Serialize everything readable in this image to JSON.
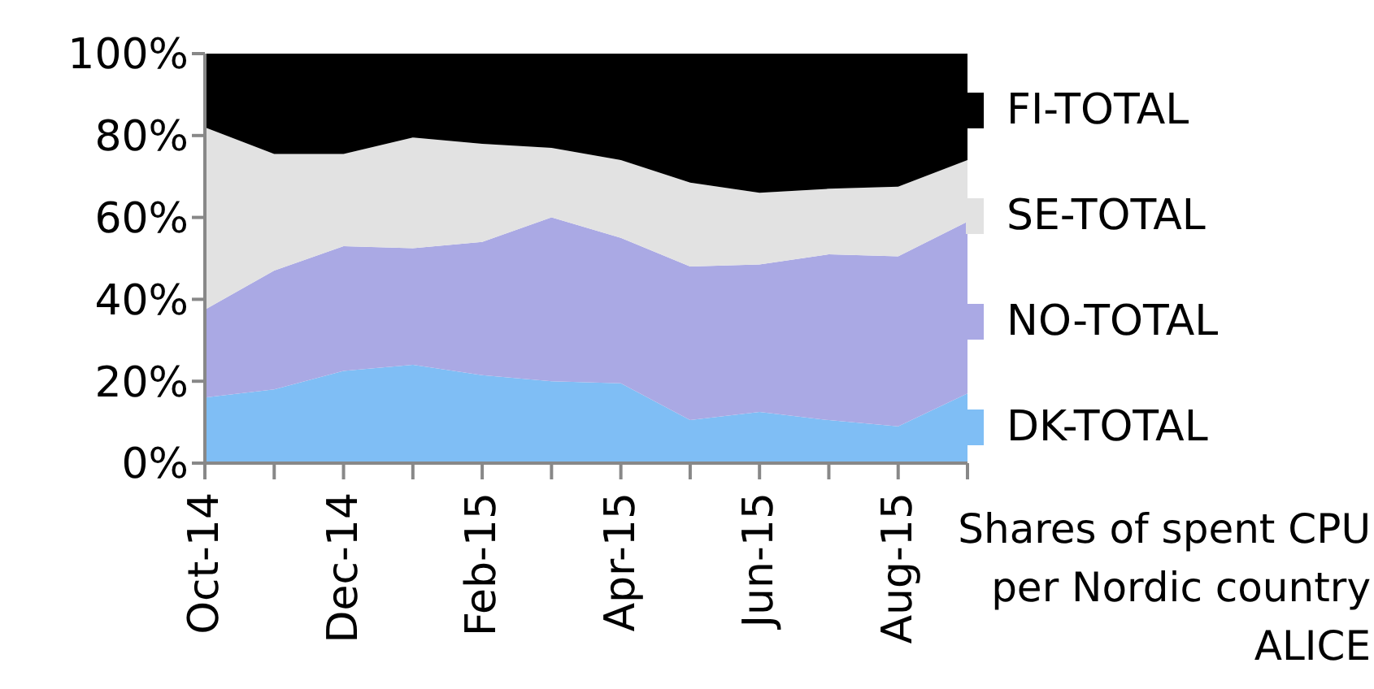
{
  "chart_data": {
    "type": "area",
    "stacked": true,
    "categories": [
      "Oct-14",
      null,
      "Dec-14",
      null,
      "Feb-15",
      null,
      "Apr-15",
      null,
      "Jun-15",
      null,
      "Aug-15",
      null
    ],
    "series": [
      {
        "name": "DK-TOTAL",
        "color": "#7fbef5",
        "values": [
          16,
          18,
          22.5,
          24,
          21.5,
          20,
          19.5,
          10.5,
          12.5,
          10.5,
          9,
          17
        ]
      },
      {
        "name": "NO-TOTAL",
        "color": "#aaa9e4",
        "values": [
          21.5,
          29,
          30.5,
          28.5,
          32.5,
          40,
          35.5,
          37.5,
          36,
          40.5,
          41.5,
          42
        ]
      },
      {
        "name": "SE-TOTAL",
        "color": "#e2e2e2",
        "values": [
          44.5,
          28.5,
          22.5,
          27,
          24,
          17,
          19,
          20.5,
          17.5,
          16,
          17,
          15
        ]
      },
      {
        "name": "FI-TOTAL",
        "color": "#000000",
        "values": [
          18,
          24.5,
          24.5,
          20.5,
          22,
          23,
          26,
          31.5,
          34,
          33,
          32.5,
          26
        ]
      }
    ],
    "ylim": [
      0,
      100
    ],
    "yticks": [
      {
        "value": 0,
        "label": "0%"
      },
      {
        "value": 20,
        "label": "20%"
      },
      {
        "value": 40,
        "label": "40%"
      },
      {
        "value": 60,
        "label": "60%"
      },
      {
        "value": 80,
        "label": "80%"
      },
      {
        "value": 100,
        "label": "100%"
      }
    ],
    "legend": "right",
    "grid": false,
    "annotations": [
      "Shares of spent CPU\nper Nordic country\nALICE"
    ]
  }
}
